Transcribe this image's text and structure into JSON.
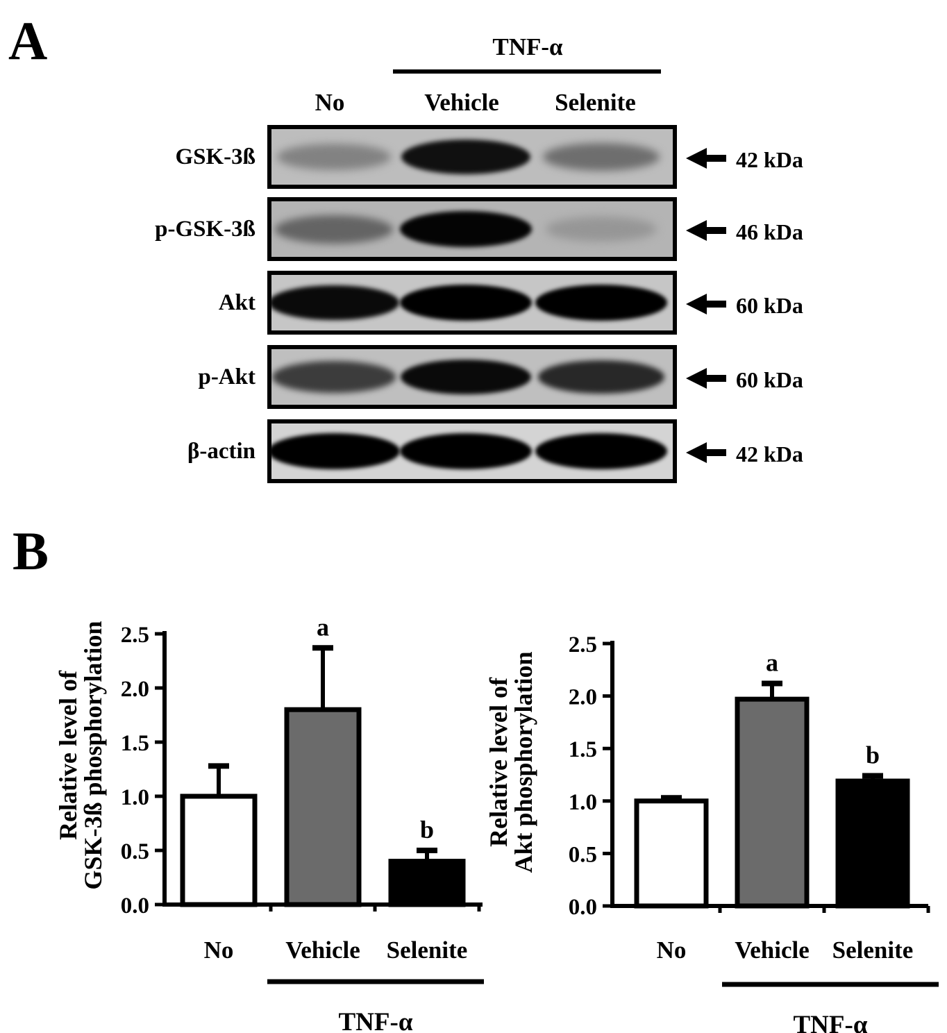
{
  "panel_a": {
    "letter": "A",
    "treatment_label": "TNF-α",
    "lanes": [
      "No",
      "Vehicle",
      "Selenite"
    ],
    "rows": [
      {
        "label": "GSK-3ß",
        "kda": "42 kDa",
        "intensities": [
          0.35,
          0.92,
          0.45
        ],
        "bg": "#bdbdbd"
      },
      {
        "label": "p-GSK-3ß",
        "kda": "46 kDa",
        "intensities": [
          0.5,
          0.98,
          0.25
        ],
        "bg": "#b4b4b4"
      },
      {
        "label": "Akt",
        "kda": "60 kDa",
        "intensities": [
          0.95,
          1.0,
          1.0
        ],
        "bg": "#c6c6c6"
      },
      {
        "label": "p-Akt",
        "kda": "60 kDa",
        "intensities": [
          0.7,
          0.95,
          0.8
        ],
        "bg": "#bfbfbf"
      },
      {
        "label": "β-actin",
        "kda": "42 kDa",
        "intensities": [
          1.0,
          1.0,
          1.0
        ],
        "bg": "#d4d4d4"
      }
    ]
  },
  "panel_b": {
    "letter": "B"
  },
  "chart_data": [
    {
      "type": "bar",
      "categories": [
        "No",
        "Vehicle",
        "Selenite"
      ],
      "values": [
        1.0,
        1.8,
        0.4
      ],
      "errors": [
        0.28,
        0.57,
        0.1
      ],
      "annotations": [
        "",
        "a",
        "b"
      ],
      "bar_colors": [
        "#ffffff",
        "#6b6b6b",
        "#000000"
      ],
      "ylabel_lines": [
        "Relative level of",
        "GSK-3ß phosphorylation"
      ],
      "ylim": [
        0,
        2.5
      ],
      "yticks": [
        "0.0",
        "0.5",
        "1.0",
        "1.5",
        "2.0",
        "2.5"
      ],
      "group_label": "TNF-α"
    },
    {
      "type": "bar",
      "categories": [
        "No",
        "Vehicle",
        "Selenite"
      ],
      "values": [
        1.0,
        1.97,
        1.19
      ],
      "errors": [
        0.03,
        0.15,
        0.05
      ],
      "annotations": [
        "",
        "a",
        "b"
      ],
      "bar_colors": [
        "#ffffff",
        "#6b6b6b",
        "#000000"
      ],
      "ylabel_lines": [
        "Relative level of",
        "Akt phosphorylation"
      ],
      "ylim": [
        0,
        2.5
      ],
      "yticks": [
        "0.0",
        "0.5",
        "1.0",
        "1.5",
        "2.0",
        "2.5"
      ],
      "group_label": "TNF-α"
    }
  ]
}
